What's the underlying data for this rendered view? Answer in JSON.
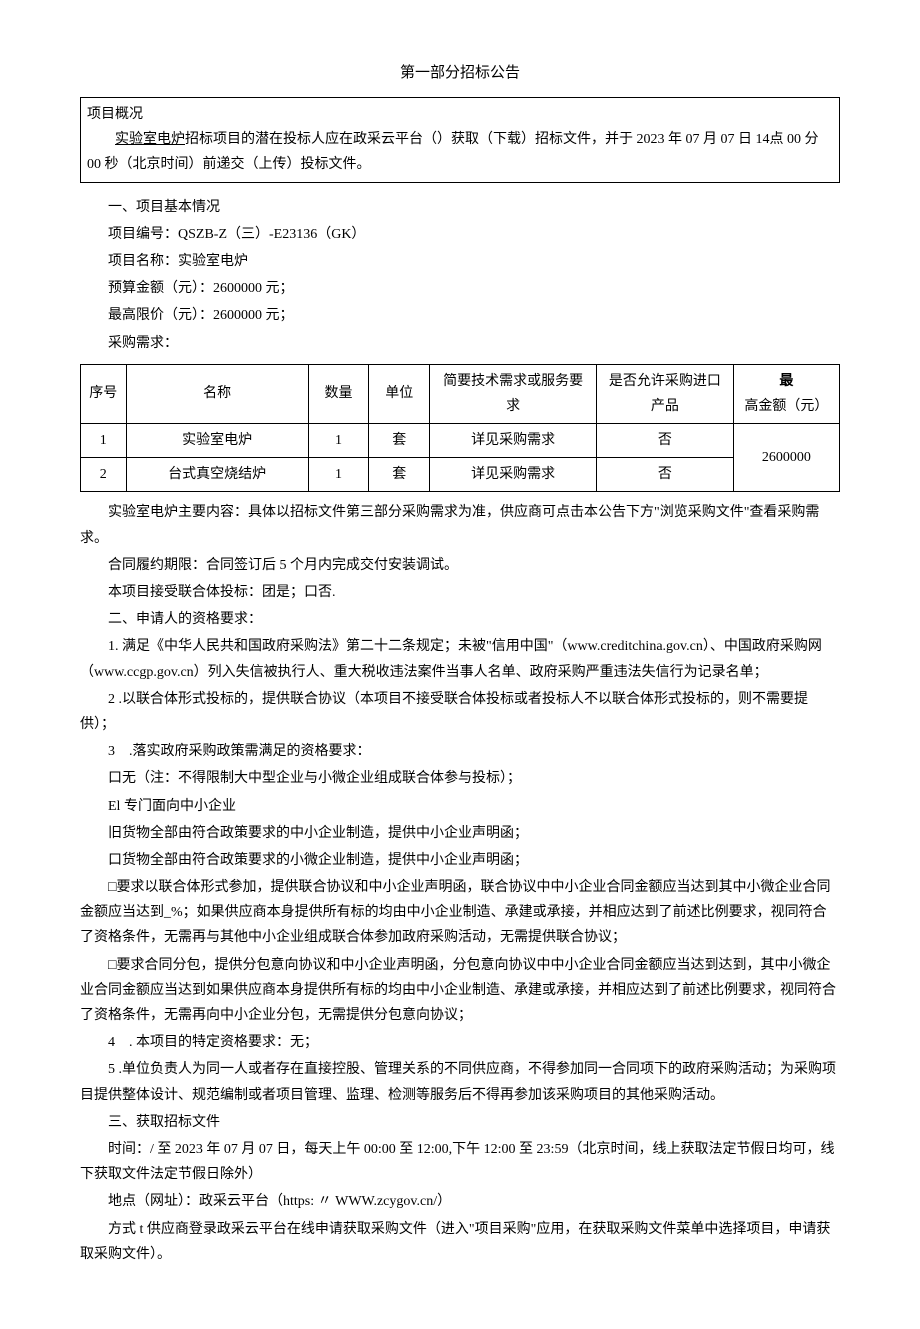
{
  "title": "第一部分招标公告",
  "overview": {
    "heading": "项目概况",
    "body_prefix": "实验室电炉",
    "body_main": "招标项目的潜在投标人应在政采云平台（）获取（下载）招标文件，并于 2023 年 07 月 07 日 14点 00 分 00 秒（北京时间）前递交（上传）投标文件。"
  },
  "section1": {
    "heading": "一、项目基本情况",
    "project_no": "项目编号：QSZB-Z（三）-E23136（GK）",
    "project_name": "项目名称：实验室电炉",
    "budget": "预算金额（元）：2600000 元；",
    "ceiling": "最高限价（元）：2600000 元；",
    "req_label": "采购需求："
  },
  "table": {
    "headers": {
      "seq": "序号",
      "name": "名称",
      "qty": "数量",
      "unit": "单位",
      "tech": "简要技术需求或服务要求",
      "import": "是否允许采购进口产品",
      "amount_prefix": "最",
      "amount_rest": "高金额（元）"
    },
    "rows": [
      {
        "seq": "1",
        "name": "实验室电炉",
        "qty": "1",
        "unit": "套",
        "tech": "详见采购需求",
        "import": "否"
      },
      {
        "seq": "2",
        "name": "台式真空烧结炉",
        "qty": "1",
        "unit": "套",
        "tech": "详见采购需求",
        "import": "否"
      }
    ],
    "amount": "2600000"
  },
  "main_content": "实验室电炉主要内容：具体以招标文件第三部分采购需求为准，供应商可点击本公告下方\"浏览采购文件\"查看采购需求。",
  "contract_period": "合同履约期限：合同签订后 5 个月内完成交付安装调试。",
  "consortium": "本项目接受联合体投标：团是；口否.",
  "section2_heading": "二、申请人的资格要求：",
  "q1": "1. 满足《中华人民共和国政府采购法》第二十二条规定；未被\"信用中国\"（www.creditchina.gov.cn）、中国政府采购网（www.ccgp.gov.cn）列入失信被执行人、重大税收违法案件当事人名单、政府采购严重违法失信行为记录名单；",
  "q2": "2 .以联合体形式投标的，提供联合协议（本项目不接受联合体投标或者投标人不以联合体形式投标的，则不需要提供）；",
  "q3": "3　.落实政府采购政策需满足的资格要求：",
  "q3_opt1": "口无（注：不得限制大中型企业与小微企业组成联合体参与投标）；",
  "q3_opt2": "El 专门面向中小企业",
  "q3_sub1": "旧货物全部由符合政策要求的中小企业制造，提供中小企业声明函；",
  "q3_sub2": "口货物全部由符合政策要求的小微企业制造，提供中小企业声明函；",
  "q3_sub3": "□要求以联合体形式参加，提供联合协议和中小企业声明函，联合协议中中小企业合同金额应当达到其中小微企业合同金额应当达到_%；如果供应商本身提供所有标的均由中小企业制造、承建或承接，并相应达到了前述比例要求，视同符合了资格条件，无需再与其他中小企业组成联合体参加政府采购活动，无需提供联合协议；",
  "q3_sub4": "□要求合同分包，提供分包意向协议和中小企业声明函，分包意向协议中中小企业合同金额应当达到达到，其中小微企业合同金额应当达到如果供应商本身提供所有标的均由中小企业制造、承建或承接，并相应达到了前述比例要求，视同符合了资格条件，无需再向中小企业分包，无需提供分包意向协议；",
  "q4": "4　. 本项目的特定资格要求：无；",
  "q5": "5 .单位负责人为同一人或者存在直接控股、管理关系的不同供应商，不得参加同一合同项下的政府采购活动；为采购项目提供整体设计、规范编制或者项目管理、监理、检测等服务后不得再参加该采购项目的其他采购活动。",
  "section3_heading": "三、获取招标文件",
  "s3_time": "时间：/ 至 2023 年 07 月 07 日，每天上午 00:00 至 12:00,下午 12:00 至 23:59（北京时间，线上获取法定节假日均可，线下获取文件法定节假日除外）",
  "s3_addr": "地点（网址）：政采云平台（https: 〃 WWW.zcygov.cn/）",
  "s3_method": "方式 t 供应商登录政采云平台在线申请获取采购文件（进入\"项目采购\"应用，在获取采购文件菜单中选择项目，申请获取采购文件）。"
}
